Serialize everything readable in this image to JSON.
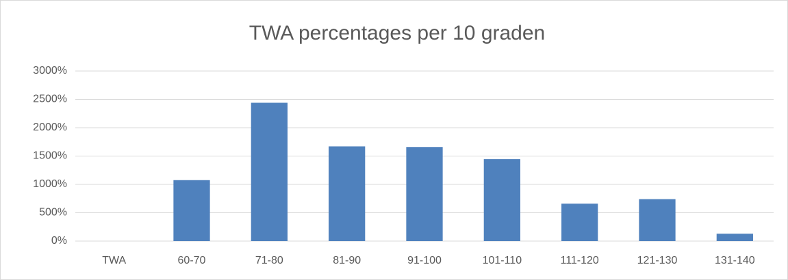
{
  "chart_data": {
    "type": "bar",
    "title": "TWA percentages per 10 graden",
    "categories": [
      "TWA",
      "60-70",
      "71-80",
      "81-90",
      "91-100",
      "101-110",
      "111-120",
      "121-130",
      "131-140"
    ],
    "values": [
      0,
      1075,
      2440,
      1670,
      1660,
      1445,
      660,
      740,
      130
    ],
    "color": "#4f81bd",
    "ylim": [
      0,
      3000
    ],
    "yticks": [
      {
        "value": 0,
        "label": "0%"
      },
      {
        "value": 500,
        "label": "500%"
      },
      {
        "value": 1000,
        "label": "1000%"
      },
      {
        "value": 1500,
        "label": "1500%"
      },
      {
        "value": 2000,
        "label": "2000%"
      },
      {
        "value": 2500,
        "label": "2500%"
      },
      {
        "value": 3000,
        "label": "3000%"
      }
    ],
    "grid": true
  }
}
